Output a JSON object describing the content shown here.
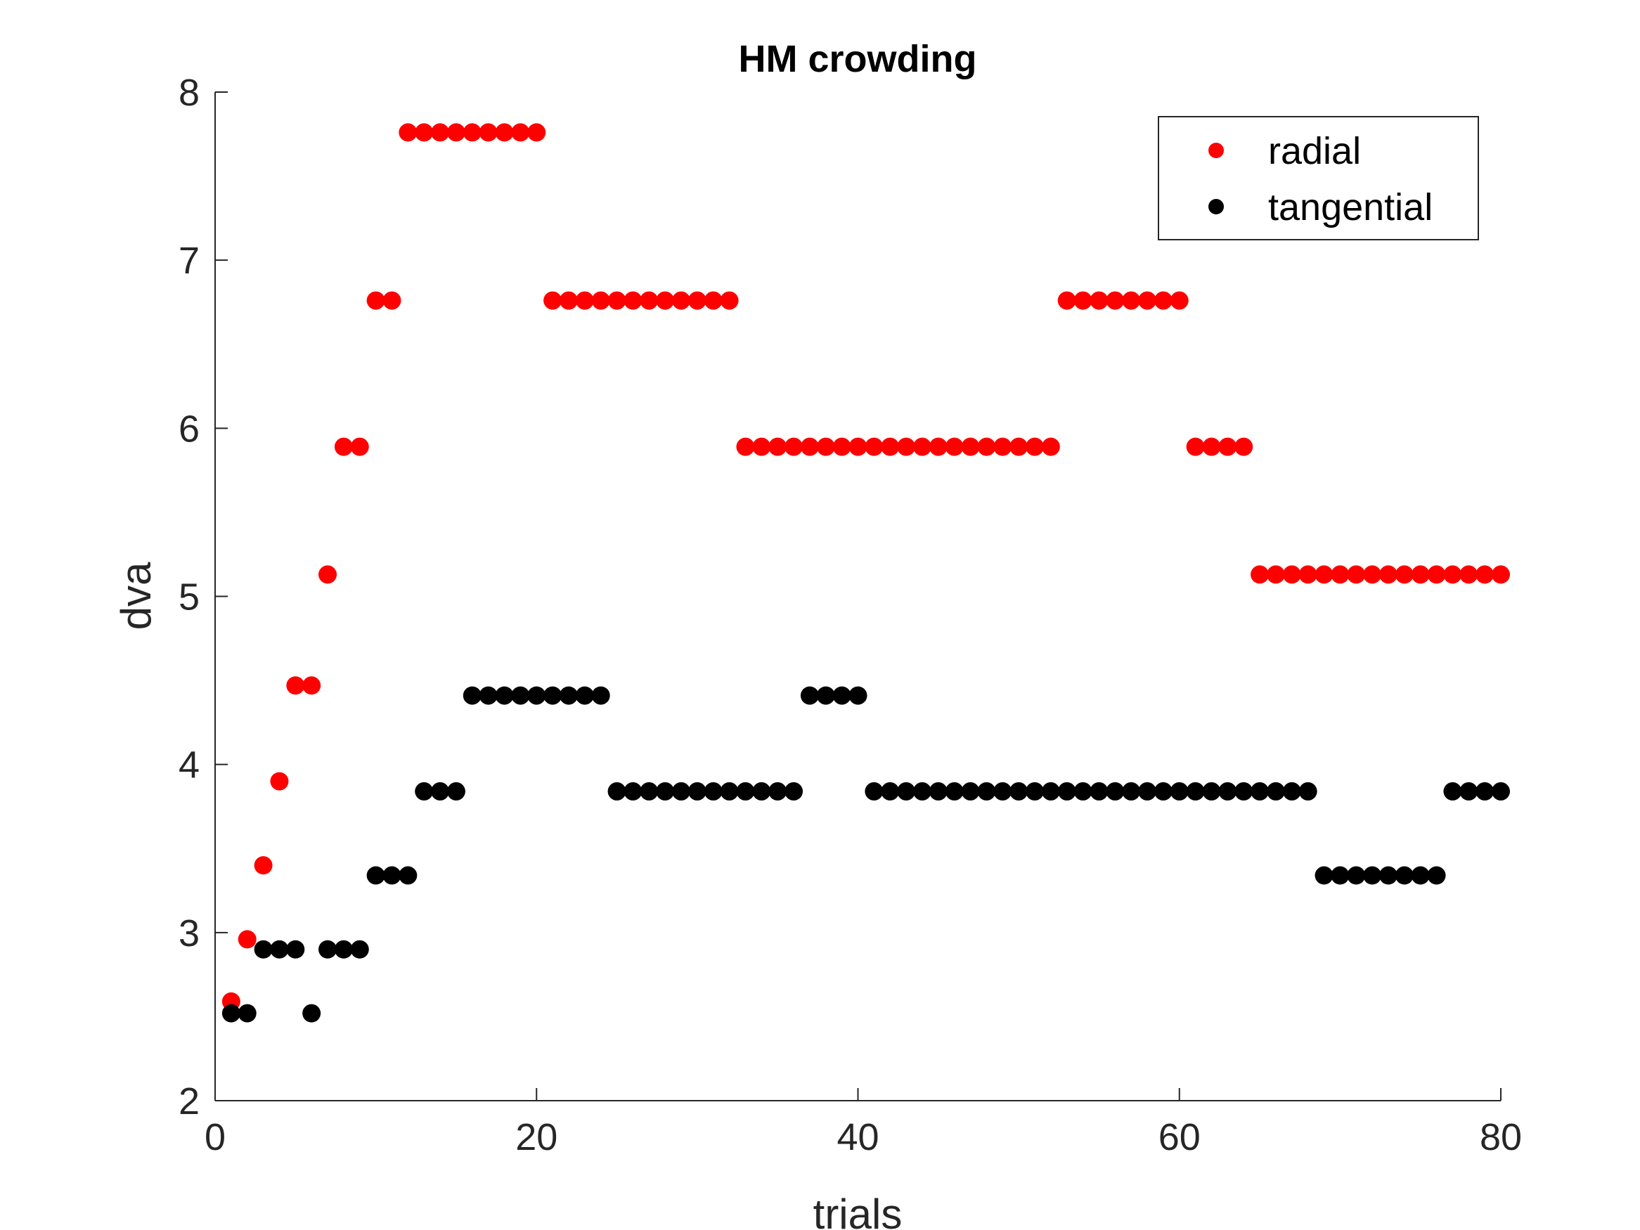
{
  "chart_data": {
    "type": "scatter",
    "title": "HM crowding",
    "xlabel": "trials",
    "ylabel": "dva",
    "xlim": [
      0,
      80
    ],
    "ylim": [
      2,
      8
    ],
    "xticks": [
      0,
      20,
      40,
      60,
      80
    ],
    "yticks": [
      2,
      3,
      4,
      5,
      6,
      7,
      8
    ],
    "grid": false,
    "legend_position": "top-right",
    "series": [
      {
        "name": "radial",
        "color": "#ff0000",
        "x": [
          1,
          2,
          3,
          4,
          5,
          6,
          7,
          8,
          9,
          10,
          11,
          12,
          13,
          14,
          15,
          16,
          17,
          18,
          19,
          20,
          21,
          22,
          23,
          24,
          25,
          26,
          27,
          28,
          29,
          30,
          31,
          32,
          33,
          34,
          35,
          36,
          37,
          38,
          39,
          40,
          41,
          42,
          43,
          44,
          45,
          46,
          47,
          48,
          49,
          50,
          51,
          52,
          53,
          54,
          55,
          56,
          57,
          58,
          59,
          60,
          61,
          62,
          63,
          64,
          65,
          66,
          67,
          68,
          69,
          70,
          71,
          72,
          73,
          74,
          75,
          76,
          77,
          78,
          79,
          80
        ],
        "y": [
          2.59,
          2.96,
          3.4,
          3.9,
          4.47,
          4.47,
          5.13,
          5.89,
          5.89,
          6.76,
          6.76,
          7.76,
          7.76,
          7.76,
          7.76,
          7.76,
          7.76,
          7.76,
          7.76,
          7.76,
          6.76,
          6.76,
          6.76,
          6.76,
          6.76,
          6.76,
          6.76,
          6.76,
          6.76,
          6.76,
          6.76,
          6.76,
          5.89,
          5.89,
          5.89,
          5.89,
          5.89,
          5.89,
          5.89,
          5.89,
          5.89,
          5.89,
          5.89,
          5.89,
          5.89,
          5.89,
          5.89,
          5.89,
          5.89,
          5.89,
          5.89,
          5.89,
          6.76,
          6.76,
          6.76,
          6.76,
          6.76,
          6.76,
          6.76,
          6.76,
          5.89,
          5.89,
          5.89,
          5.89,
          5.13,
          5.13,
          5.13,
          5.13,
          5.13,
          5.13,
          5.13,
          5.13,
          5.13,
          5.13,
          5.13,
          5.13,
          5.13,
          5.13,
          5.13,
          5.13
        ]
      },
      {
        "name": "tangential",
        "color": "#000000",
        "x": [
          1,
          2,
          3,
          4,
          5,
          6,
          7,
          8,
          9,
          10,
          11,
          12,
          13,
          14,
          15,
          16,
          17,
          18,
          19,
          20,
          21,
          22,
          23,
          24,
          25,
          26,
          27,
          28,
          29,
          30,
          31,
          32,
          33,
          34,
          35,
          36,
          37,
          38,
          39,
          40,
          41,
          42,
          43,
          44,
          45,
          46,
          47,
          48,
          49,
          50,
          51,
          52,
          53,
          54,
          55,
          56,
          57,
          58,
          59,
          60,
          61,
          62,
          63,
          64,
          65,
          66,
          67,
          68,
          69,
          70,
          71,
          72,
          73,
          74,
          75,
          76,
          77,
          78,
          79,
          80
        ],
        "y": [
          2.52,
          2.52,
          2.9,
          2.9,
          2.9,
          2.52,
          2.9,
          2.9,
          2.9,
          3.34,
          3.34,
          3.34,
          3.84,
          3.84,
          3.84,
          4.41,
          4.41,
          4.41,
          4.41,
          4.41,
          4.41,
          4.41,
          4.41,
          4.41,
          3.84,
          3.84,
          3.84,
          3.84,
          3.84,
          3.84,
          3.84,
          3.84,
          3.84,
          3.84,
          3.84,
          3.84,
          4.41,
          4.41,
          4.41,
          4.41,
          3.84,
          3.84,
          3.84,
          3.84,
          3.84,
          3.84,
          3.84,
          3.84,
          3.84,
          3.84,
          3.84,
          3.84,
          3.84,
          3.84,
          3.84,
          3.84,
          3.84,
          3.84,
          3.84,
          3.84,
          3.84,
          3.84,
          3.84,
          3.84,
          3.84,
          3.84,
          3.84,
          3.84,
          3.34,
          3.34,
          3.34,
          3.34,
          3.34,
          3.34,
          3.34,
          3.34,
          3.84,
          3.84,
          3.84,
          3.84
        ]
      }
    ]
  }
}
